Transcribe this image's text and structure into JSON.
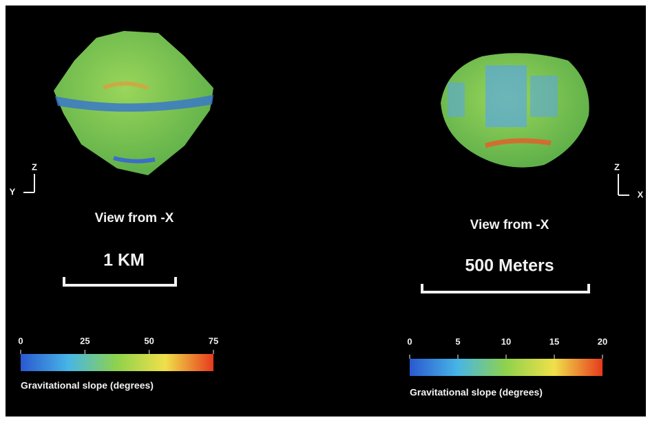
{
  "panels": [
    {
      "axes": {
        "up": "Z",
        "side": "Y"
      },
      "view": "View from -X",
      "scale": "1 KM",
      "colorbar": {
        "ticks": [
          0,
          25,
          50,
          75
        ],
        "label": "Gravitational slope (degrees)"
      }
    },
    {
      "axes": {
        "up": "Z",
        "side": "X"
      },
      "view": "View from -X",
      "scale": "500 Meters",
      "colorbar": {
        "ticks": [
          0,
          5,
          10,
          15,
          20
        ],
        "label": "Gravitational slope (degrees)"
      }
    }
  ]
}
